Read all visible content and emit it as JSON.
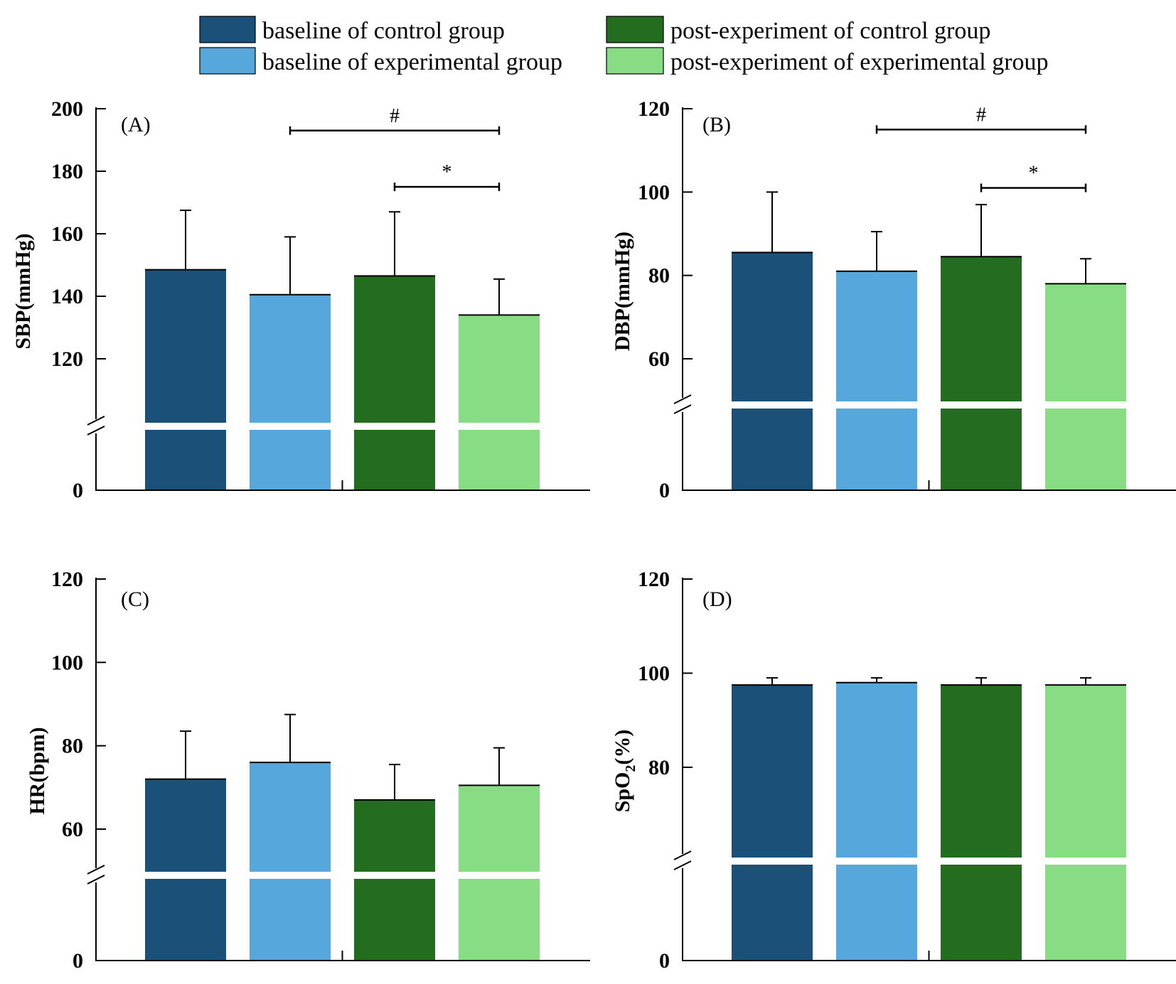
{
  "legend": [
    {
      "label": "baseline of control group",
      "color": "#1b5078"
    },
    {
      "label": "post-experiment of control group",
      "color": "#246c1f"
    },
    {
      "label": "baseline of experimental group",
      "color": "#55a7dc"
    },
    {
      "label": "post-experiment of experimental group",
      "color": "#87dc84"
    }
  ],
  "chart_data": [
    {
      "type": "bar",
      "panel_label": "(A)",
      "ylabel": "SBP(mmHg)",
      "ylabel_main": "SBP(mmHg)",
      "ylabel_sub": "",
      "ylabel_tail": "",
      "categories": [
        "baseline of control group",
        "baseline of experimental group",
        "post-experiment of control group",
        "post-experiment of experimental group"
      ],
      "values": [
        148.5,
        140.5,
        146.5,
        134
      ],
      "errors": [
        19,
        18.5,
        20.5,
        11.5
      ],
      "yticks": [
        0,
        120,
        140,
        160,
        180,
        200
      ],
      "ytick_labels": [
        "0",
        "120",
        "140",
        "160",
        "180",
        "200"
      ],
      "ylim": [
        0,
        200
      ],
      "axis_break": [
        0,
        100
      ],
      "significance": [
        {
          "symbol": "#",
          "from": 1,
          "to": 3,
          "level": 193
        },
        {
          "symbol": "*",
          "from": 2,
          "to": 3,
          "level": 175
        }
      ]
    },
    {
      "type": "bar",
      "panel_label": "(B)",
      "ylabel": "DBP(mmHg)",
      "ylabel_main": "DBP(mmHg)",
      "ylabel_sub": "",
      "ylabel_tail": "",
      "categories": [
        "baseline of control group",
        "baseline of experimental group",
        "post-experiment of control group",
        "post-experiment of experimental group"
      ],
      "values": [
        85.5,
        81,
        84.5,
        78
      ],
      "errors": [
        14.5,
        9.5,
        12.5,
        6
      ],
      "yticks": [
        0,
        60,
        80,
        100,
        120
      ],
      "ytick_labels": [
        "0",
        "60",
        "80",
        "100",
        "120"
      ],
      "ylim": [
        0,
        120
      ],
      "axis_break": [
        0,
        40
      ],
      "significance": [
        {
          "symbol": "#",
          "from": 1,
          "to": 3,
          "level": 115
        },
        {
          "symbol": "*",
          "from": 2,
          "to": 3,
          "level": 101
        }
      ]
    },
    {
      "type": "bar",
      "panel_label": "(C)",
      "ylabel": "HR(bpm)",
      "ylabel_main": "HR(bpm)",
      "ylabel_sub": "",
      "ylabel_tail": "",
      "categories": [
        "baseline of control group",
        "baseline of experimental group",
        "post-experiment of control group",
        "post-experiment of experimental group"
      ],
      "values": [
        72,
        76,
        67,
        70.5
      ],
      "errors": [
        11.5,
        11.5,
        8.5,
        9
      ],
      "yticks": [
        0,
        60,
        80,
        100,
        120
      ],
      "ytick_labels": [
        "0",
        "60",
        "80",
        "100",
        "120"
      ],
      "ylim": [
        0,
        120
      ],
      "axis_break": [
        0,
        40
      ],
      "significance": []
    },
    {
      "type": "bar",
      "panel_label": "(D)",
      "ylabel": "SpO2(%)",
      "ylabel_main": "SpO",
      "ylabel_sub": "2",
      "ylabel_tail": "(%)",
      "categories": [
        "baseline of control group",
        "baseline of experimental group",
        "post-experiment of control group",
        "post-experiment of experimental group"
      ],
      "values": [
        97.5,
        98,
        97.5,
        97.5
      ],
      "errors": [
        1.5,
        1,
        1.5,
        1.5
      ],
      "yticks": [
        0,
        80,
        100,
        120
      ],
      "ytick_labels": [
        "0",
        "80",
        "100",
        "120"
      ],
      "ylim": [
        0,
        120
      ],
      "axis_break": [
        0,
        40
      ],
      "significance": []
    }
  ]
}
